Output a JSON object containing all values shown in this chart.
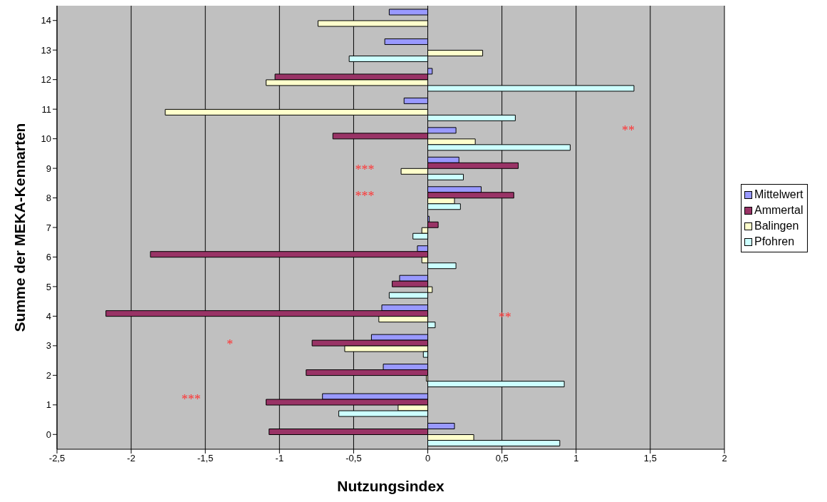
{
  "chart_data": {
    "type": "bar",
    "orientation": "horizontal",
    "xlabel": "Nutzungsindex",
    "ylabel": "Summe der MEKA-Kennarten",
    "categories": [
      "14",
      "13",
      "12",
      "11",
      "10",
      "9",
      "8",
      "7",
      "6",
      "5",
      "4",
      "3",
      "2",
      "1",
      "0"
    ],
    "series": [
      {
        "name": "Mittelwert",
        "color": "#9999ff",
        "values": [
          -0.26,
          -0.29,
          0.03,
          -0.16,
          0.19,
          0.21,
          0.36,
          0.01,
          -0.07,
          -0.19,
          -0.31,
          -0.38,
          -0.3,
          -0.71,
          0.18
        ]
      },
      {
        "name": "Ammertal",
        "color": "#993366",
        "values": [
          null,
          null,
          -1.03,
          null,
          -0.64,
          0.61,
          0.58,
          0.07,
          -1.87,
          -0.24,
          -2.17,
          -0.78,
          -0.82,
          -1.09,
          -1.07
        ]
      },
      {
        "name": "Balingen",
        "color": "#ffffcc",
        "values": [
          -0.74,
          0.37,
          -1.09,
          -1.77,
          0.32,
          -0.18,
          0.18,
          -0.04,
          -0.04,
          0.03,
          -0.33,
          -0.56,
          -0.01,
          -0.2,
          0.31
        ]
      },
      {
        "name": "Pfohren",
        "color": "#ccffff",
        "values": [
          null,
          -0.53,
          1.39,
          0.59,
          0.96,
          0.24,
          0.22,
          -0.1,
          0.19,
          -0.26,
          0.05,
          -0.03,
          0.92,
          -0.6,
          0.89
        ]
      }
    ],
    "xlim": [
      -2.5,
      2
    ],
    "xticks": [
      {
        "value": -2.5,
        "label": "-2,5"
      },
      -2,
      {
        "value": -1.5,
        "label": "-1,5"
      },
      -1,
      {
        "value": -0.5,
        "label": "-0,5"
      },
      0,
      {
        "value": 0.5,
        "label": "0,5"
      },
      1,
      {
        "value": 1.5,
        "label": "1,5"
      },
      2
    ],
    "grid": "x",
    "legend": "right",
    "annotations": [
      "**",
      "***",
      "***",
      "**",
      "*",
      "***"
    ]
  }
}
